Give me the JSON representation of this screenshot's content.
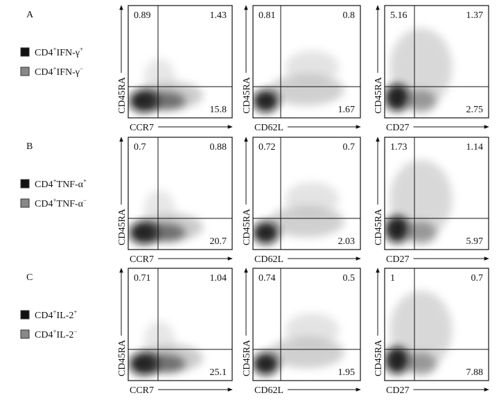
{
  "rows": [
    {
      "label": "A",
      "legend": [
        {
          "cell": "CD4",
          "cell_sup": "+",
          "marker": "IFN-γ",
          "marker_sup": "+"
        },
        {
          "cell": "CD4",
          "cell_sup": "+",
          "marker": "IFN-γ",
          "marker_sup": "−"
        }
      ],
      "panels": [
        {
          "x_label": "CCR7",
          "y_label": "CD45RA",
          "upper_left": 0.89,
          "upper_right": 1.43,
          "lower_right": 15.8
        },
        {
          "x_label": "CD62L",
          "y_label": "CD45RA",
          "upper_left": 0.81,
          "upper_right": 0.8,
          "lower_right": 1.67
        },
        {
          "x_label": "CD27",
          "y_label": "CD45RA",
          "upper_left": 5.16,
          "upper_right": 1.37,
          "lower_right": 2.75
        }
      ]
    },
    {
      "label": "B",
      "legend": [
        {
          "cell": "CD4",
          "cell_sup": "+",
          "marker": "TNF-α",
          "marker_sup": "+"
        },
        {
          "cell": "CD4",
          "cell_sup": "+",
          "marker": "TNF-α",
          "marker_sup": "−"
        }
      ],
      "panels": [
        {
          "x_label": "CCR7",
          "y_label": "CD45RA",
          "upper_left": 0.7,
          "upper_right": 0.88,
          "lower_right": 20.7
        },
        {
          "x_label": "CD62L",
          "y_label": "CD45RA",
          "upper_left": 0.72,
          "upper_right": 0.7,
          "lower_right": 2.03
        },
        {
          "x_label": "CD27",
          "y_label": "CD45RA",
          "upper_left": 1.73,
          "upper_right": 1.14,
          "lower_right": 5.97
        }
      ]
    },
    {
      "label": "C",
      "legend": [
        {
          "cell": "CD4",
          "cell_sup": "+",
          "marker": "IL-2",
          "marker_sup": "+"
        },
        {
          "cell": "CD4",
          "cell_sup": "+",
          "marker": "IL-2",
          "marker_sup": "−"
        }
      ],
      "panels": [
        {
          "x_label": "CCR7",
          "y_label": "CD45RA",
          "upper_left": 0.71,
          "upper_right": 1.04,
          "lower_right": 25.1
        },
        {
          "x_label": "CD62L",
          "y_label": "CD45RA",
          "upper_left": 0.74,
          "upper_right": 0.5,
          "lower_right": 1.95
        },
        {
          "x_label": "CD27",
          "y_label": "CD45RA",
          "upper_left": 1,
          "upper_right": 0.7,
          "lower_right": 7.88
        }
      ]
    }
  ]
}
